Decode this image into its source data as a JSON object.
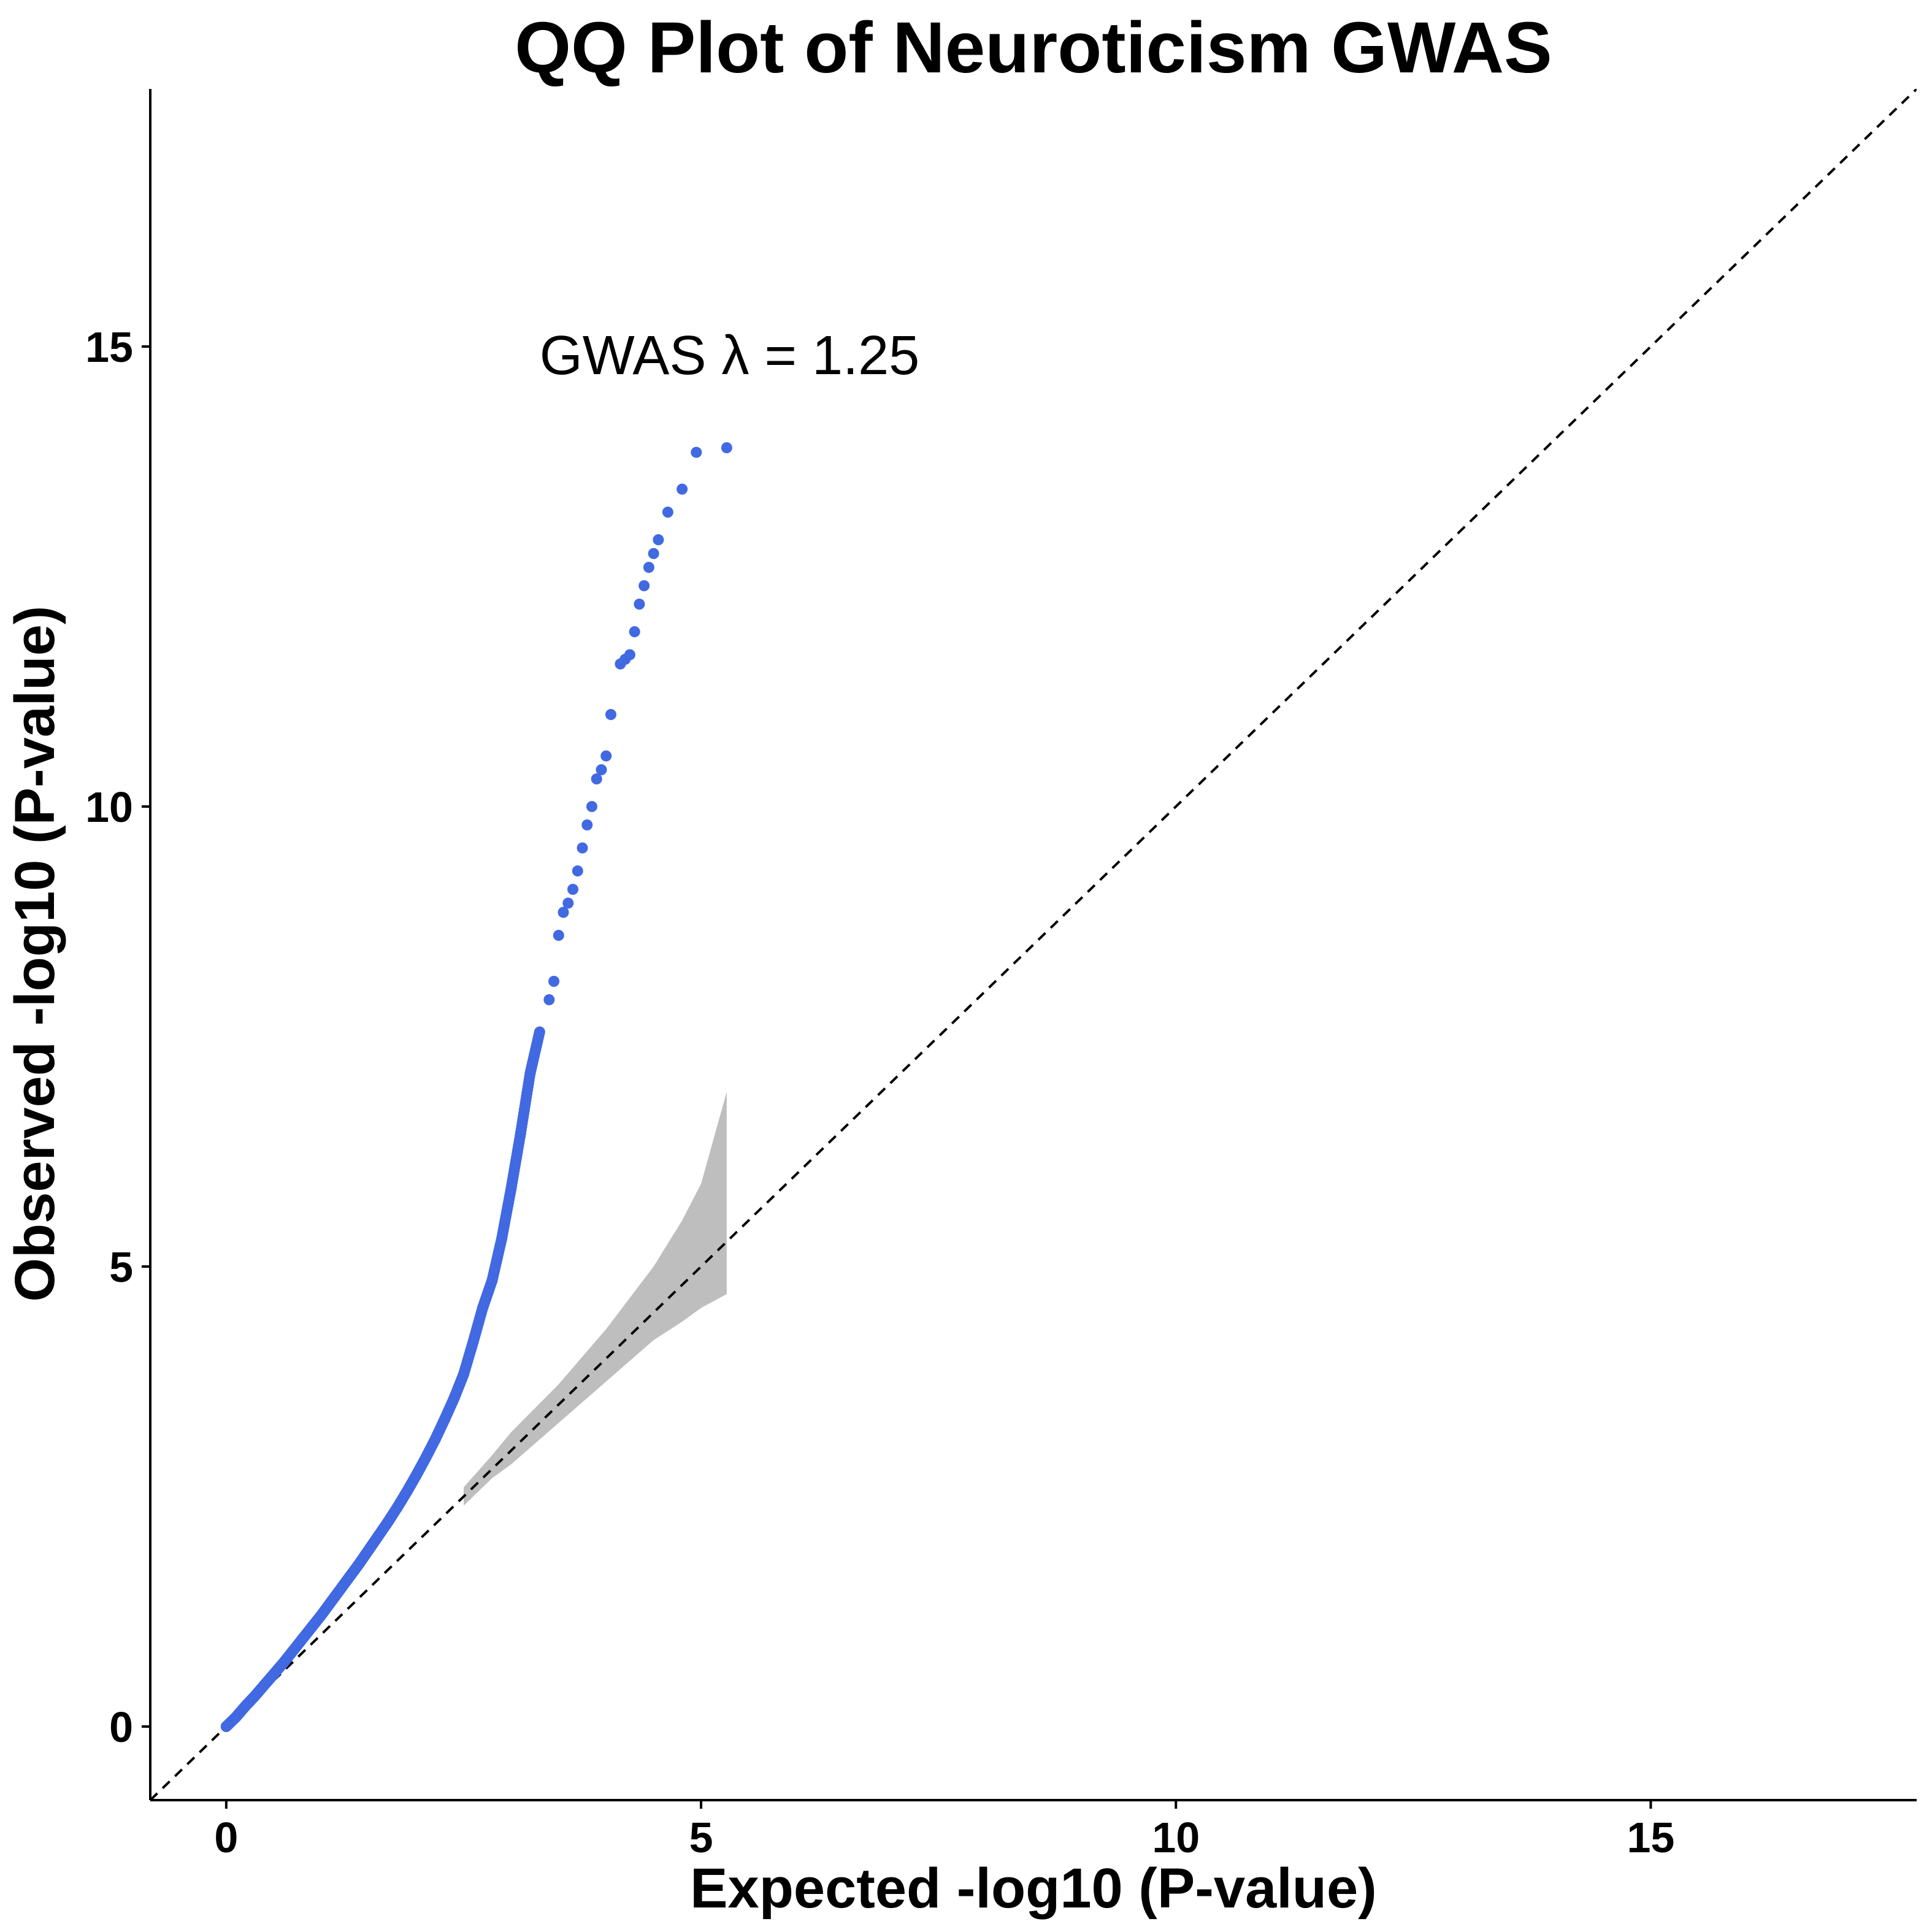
{
  "chart_data": {
    "type": "scatter",
    "title": "QQ Plot of Neuroticism GWAS",
    "xlabel": "Expected  -log10 (P-value)",
    "ylabel": "Observed  -log10 (P-value)",
    "xlim": [
      -0.8,
      17.8
    ],
    "ylim": [
      -0.8,
      17.8
    ],
    "x_ticks": [
      "0",
      "5",
      "10",
      "15"
    ],
    "y_ticks": [
      "0",
      "5",
      "10",
      "15"
    ],
    "annotation": "GWAS λ = 1.25",
    "grid": false,
    "reference_line": {
      "style": "dashed",
      "slope": 1,
      "intercept": 0,
      "color": "#000000"
    },
    "point_color": "#4169e1",
    "band_color": "#bebebe",
    "confidence_band": {
      "x": [
        2.5,
        2.8,
        3.0,
        3.5,
        4.0,
        4.5,
        4.8,
        5.0,
        5.27
      ],
      "upper": [
        2.6,
        2.95,
        3.2,
        3.72,
        4.32,
        5.0,
        5.5,
        5.9,
        6.9
      ],
      "lower": [
        2.4,
        2.7,
        2.85,
        3.3,
        3.75,
        4.2,
        4.4,
        4.55,
        4.7
      ]
    },
    "series": [
      {
        "x": [
          0.0,
          0.1,
          0.2,
          0.3,
          0.4,
          0.5,
          0.6,
          0.7,
          0.8,
          0.9,
          1.0,
          1.1,
          1.2,
          1.3,
          1.4,
          1.5,
          1.6,
          1.7,
          1.8,
          1.9,
          2.0,
          2.1,
          2.2,
          2.3,
          2.4,
          2.5,
          2.6,
          2.7,
          2.8,
          2.9,
          3.0,
          3.1,
          3.2,
          3.3,
          3.4,
          3.45,
          3.5,
          3.55,
          3.6,
          3.65,
          3.7,
          3.75,
          3.8,
          3.85,
          3.9,
          3.95,
          4.0,
          4.05,
          4.15,
          4.2,
          4.25,
          4.3,
          4.35,
          4.4,
          4.45,
          4.5,
          4.55,
          4.65,
          4.8,
          4.95,
          5.27
        ],
        "y": [
          0.0,
          0.1,
          0.22,
          0.33,
          0.45,
          0.57,
          0.69,
          0.82,
          0.95,
          1.08,
          1.21,
          1.35,
          1.49,
          1.63,
          1.77,
          1.92,
          2.07,
          2.22,
          2.38,
          2.55,
          2.73,
          2.92,
          3.12,
          3.34,
          3.57,
          3.83,
          4.18,
          4.55,
          4.85,
          5.3,
          5.85,
          6.45,
          7.1,
          7.55,
          7.9,
          8.1,
          8.6,
          8.85,
          8.95,
          9.1,
          9.3,
          9.55,
          9.8,
          10.0,
          10.3,
          10.4,
          10.55,
          11.0,
          11.55,
          11.6,
          11.65,
          11.9,
          12.2,
          12.4,
          12.6,
          12.75,
          12.9,
          13.2,
          13.45,
          13.85,
          13.9
        ]
      }
    ]
  }
}
